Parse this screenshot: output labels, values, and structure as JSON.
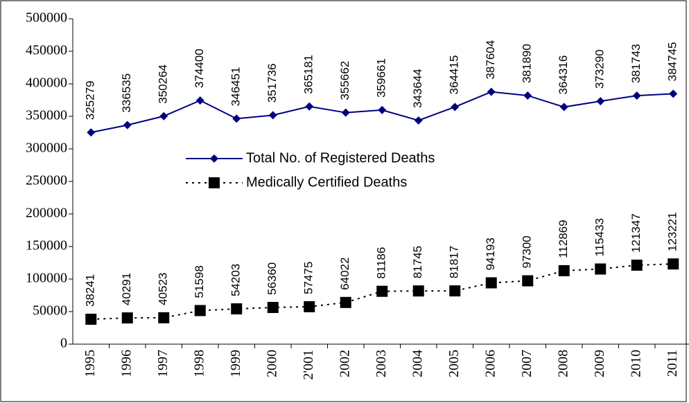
{
  "chart_data": {
    "type": "line",
    "categories": [
      "1995",
      "1996",
      "1997",
      "1998",
      "1999",
      "2000",
      "2'001",
      "2002",
      "2003",
      "2004",
      "2005",
      "2006",
      "2007",
      "2008",
      "2009",
      "2010",
      "2011"
    ],
    "series": [
      {
        "name": "Total No. of Registered Deaths",
        "color": "#000080",
        "marker": "diamond",
        "dash": "solid",
        "values": [
          325279,
          336535,
          350264,
          374400,
          346451,
          351736,
          365181,
          355662,
          359661,
          343644,
          364415,
          387604,
          381890,
          364316,
          373290,
          381743,
          384745
        ]
      },
      {
        "name": "Medically Certified Deaths",
        "color": "#000000",
        "marker": "square",
        "dash": "dotted",
        "values": [
          38241,
          40291,
          40523,
          51598,
          54203,
          56360,
          57475,
          64022,
          81186,
          81745,
          81817,
          94193,
          97300,
          112869,
          115433,
          121347,
          123221
        ]
      }
    ],
    "ylim": [
      0,
      500000
    ],
    "yticks": [
      0,
      50000,
      100000,
      150000,
      200000,
      250000,
      300000,
      350000,
      400000,
      450000,
      500000
    ],
    "data_labels": true
  }
}
